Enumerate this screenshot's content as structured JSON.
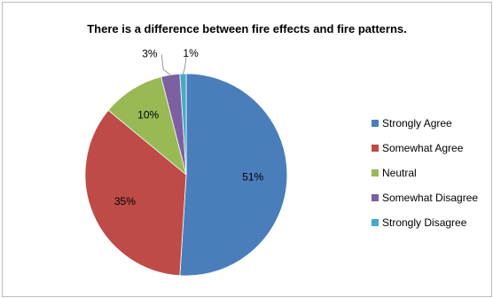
{
  "chart_data": {
    "type": "pie",
    "title": "There is a difference between fire effects and fire patterns.",
    "categories": [
      "Strongly Agree",
      "Somewhat Agree",
      "Neutral",
      "Somewhat Disagree",
      "Strongly Disagree"
    ],
    "values": [
      51,
      35,
      10,
      3,
      1
    ],
    "data_labels": [
      "51%",
      "35%",
      "10%",
      "3%",
      "1%"
    ],
    "colors": [
      "#4a7ebb",
      "#be4b48",
      "#98b954",
      "#7d60a0",
      "#46aac4"
    ],
    "legend_position": "right"
  }
}
